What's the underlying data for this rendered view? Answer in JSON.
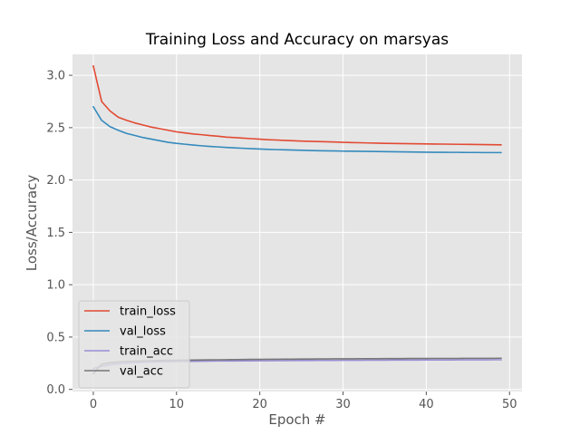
{
  "chart_data": {
    "type": "line",
    "title": "Training Loss and Accuracy on marsyas",
    "xlabel": "Epoch #",
    "ylabel": "Loss/Accuracy",
    "xlim": [
      -2.5,
      51.5
    ],
    "ylim": [
      -0.02,
      3.2
    ],
    "xticks": [
      0,
      10,
      20,
      30,
      40,
      50
    ],
    "yticks": [
      0.0,
      0.5,
      1.0,
      1.5,
      2.0,
      2.5,
      3.0
    ],
    "xtick_labels": [
      "0",
      "10",
      "20",
      "30",
      "40",
      "50"
    ],
    "ytick_labels": [
      "0.0",
      "0.5",
      "1.0",
      "1.5",
      "2.0",
      "2.5",
      "3.0"
    ],
    "grid": true,
    "legend_position": "lower-left",
    "x": [
      0,
      1,
      2,
      3,
      4,
      5,
      6,
      7,
      8,
      9,
      10,
      11,
      12,
      13,
      14,
      15,
      16,
      17,
      18,
      19,
      20,
      21,
      22,
      23,
      24,
      25,
      26,
      27,
      28,
      29,
      30,
      31,
      32,
      33,
      34,
      35,
      36,
      37,
      38,
      39,
      40,
      41,
      42,
      43,
      44,
      45,
      46,
      47,
      48,
      49
    ],
    "series": [
      {
        "name": "train_loss",
        "color": "#E24A33",
        "values": [
          3.09,
          2.75,
          2.66,
          2.6,
          2.57,
          2.545,
          2.525,
          2.505,
          2.49,
          2.475,
          2.46,
          2.45,
          2.44,
          2.433,
          2.425,
          2.418,
          2.41,
          2.405,
          2.4,
          2.395,
          2.39,
          2.385,
          2.382,
          2.378,
          2.375,
          2.372,
          2.37,
          2.367,
          2.365,
          2.363,
          2.36,
          2.358,
          2.356,
          2.354,
          2.352,
          2.35,
          2.349,
          2.348,
          2.347,
          2.346,
          2.345,
          2.344,
          2.343,
          2.342,
          2.341,
          2.34,
          2.339,
          2.338,
          2.337,
          2.336
        ]
      },
      {
        "name": "val_loss",
        "color": "#348ABD",
        "values": [
          2.7,
          2.57,
          2.51,
          2.475,
          2.445,
          2.425,
          2.405,
          2.39,
          2.375,
          2.36,
          2.35,
          2.342,
          2.334,
          2.327,
          2.321,
          2.316,
          2.311,
          2.307,
          2.303,
          2.299,
          2.296,
          2.293,
          2.29,
          2.288,
          2.286,
          2.284,
          2.282,
          2.28,
          2.279,
          2.278,
          2.276,
          2.275,
          2.274,
          2.273,
          2.272,
          2.271,
          2.27,
          2.269,
          2.268,
          2.267,
          2.266,
          2.265,
          2.265,
          2.264,
          2.264,
          2.263,
          2.263,
          2.262,
          2.262,
          2.262
        ]
      },
      {
        "name": "train_acc",
        "color": "#988ED5",
        "values": [
          0.2,
          0.22,
          0.235,
          0.245,
          0.25,
          0.255,
          0.26,
          0.262,
          0.264,
          0.265,
          0.266,
          0.267,
          0.268,
          0.269,
          0.27,
          0.271,
          0.272,
          0.272,
          0.273,
          0.273,
          0.274,
          0.274,
          0.275,
          0.275,
          0.276,
          0.276,
          0.276,
          0.277,
          0.277,
          0.277,
          0.278,
          0.278,
          0.278,
          0.279,
          0.279,
          0.279,
          0.28,
          0.28,
          0.28,
          0.28,
          0.281,
          0.281,
          0.281,
          0.281,
          0.282,
          0.282,
          0.282,
          0.282,
          0.283,
          0.283
        ]
      },
      {
        "name": "val_acc",
        "color": "#777777",
        "values": [
          0.15,
          0.24,
          0.255,
          0.262,
          0.267,
          0.27,
          0.272,
          0.274,
          0.276,
          0.277,
          0.278,
          0.279,
          0.28,
          0.281,
          0.282,
          0.283,
          0.284,
          0.285,
          0.286,
          0.287,
          0.287,
          0.288,
          0.288,
          0.289,
          0.289,
          0.29,
          0.29,
          0.291,
          0.291,
          0.292,
          0.292,
          0.292,
          0.293,
          0.293,
          0.293,
          0.294,
          0.294,
          0.294,
          0.295,
          0.295,
          0.295,
          0.296,
          0.296,
          0.296,
          0.296,
          0.297,
          0.297,
          0.297,
          0.297,
          0.298
        ]
      }
    ]
  },
  "colors": {
    "axes_background": "#E5E5E5",
    "grid": "#FFFFFF",
    "tick_text": "#555555"
  }
}
